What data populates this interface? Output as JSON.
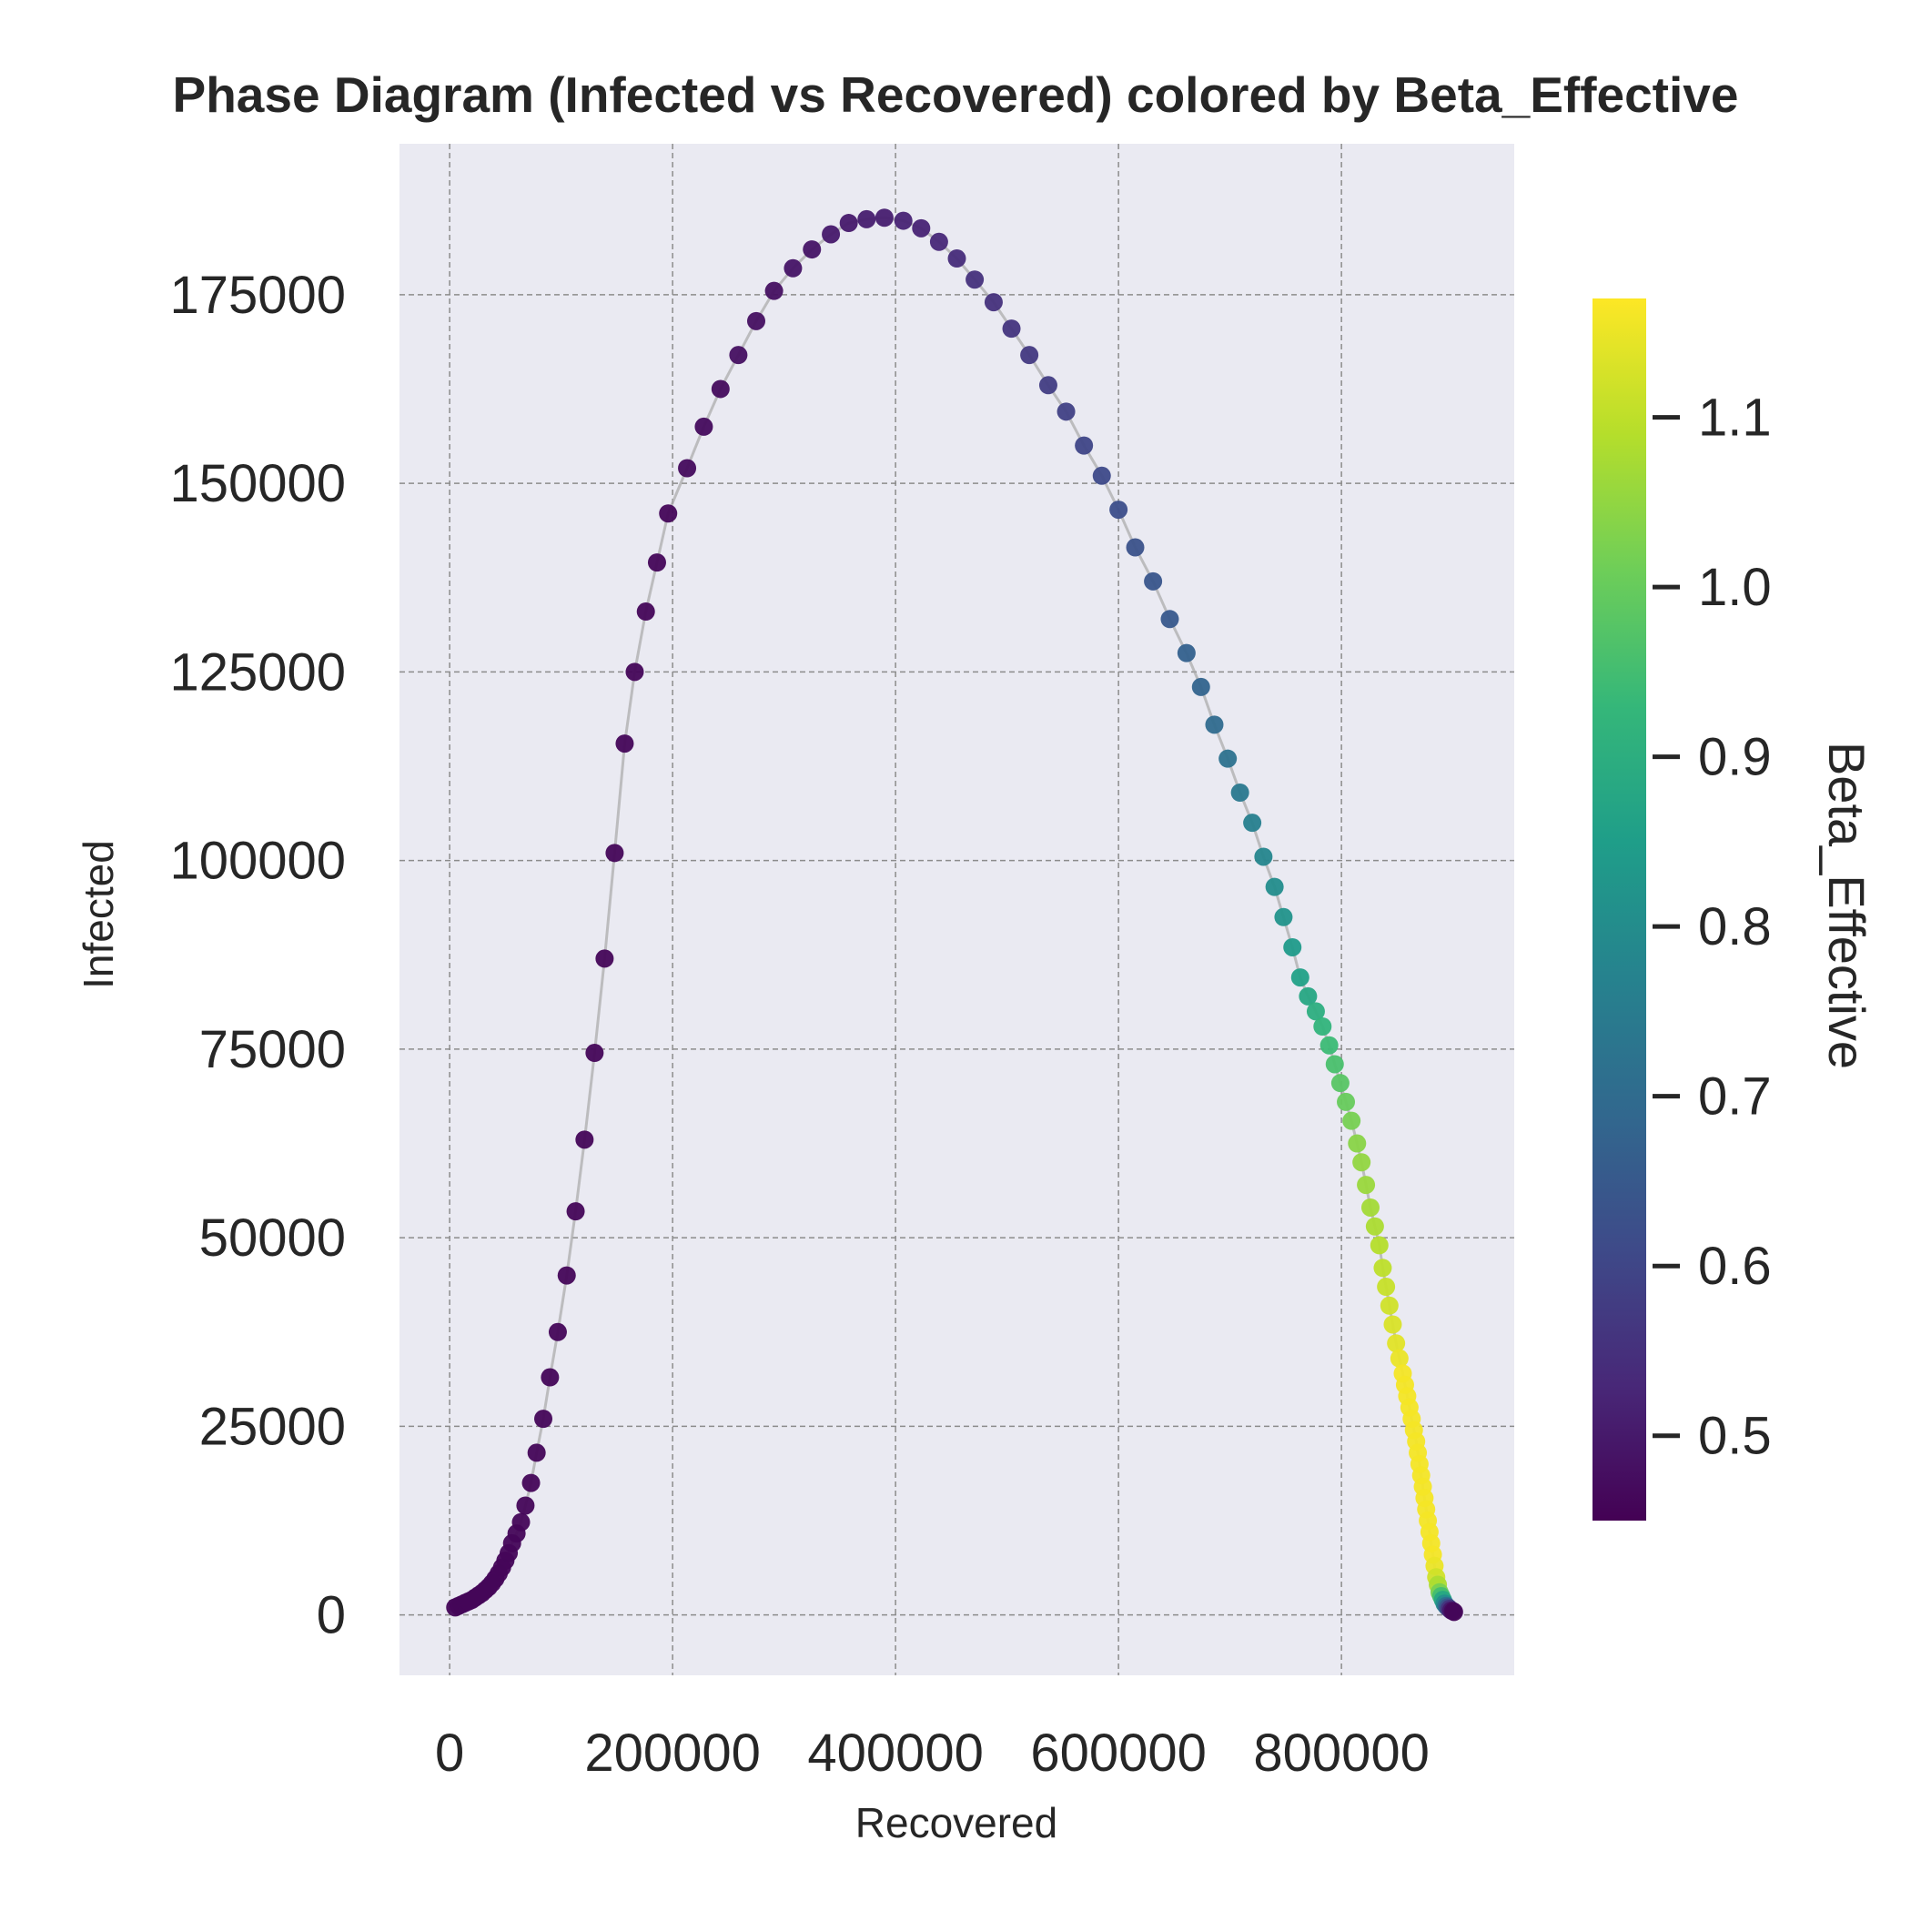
{
  "chart_data": {
    "type": "scatter",
    "title": "Phase Diagram (Infected vs Recovered) colored by Beta_Effective",
    "xlabel": "Recovered",
    "ylabel": "Infected",
    "xlim": [
      -45000,
      955000
    ],
    "ylim": [
      -8000,
      195000
    ],
    "x_ticks": [
      0,
      200000,
      400000,
      600000,
      800000
    ],
    "y_ticks": [
      0,
      25000,
      50000,
      75000,
      100000,
      125000,
      150000,
      175000
    ],
    "grid": true,
    "connecting_line": true,
    "colorbar": {
      "label": "Beta_Effective",
      "colormap": "viridis",
      "range": [
        0.45,
        1.17
      ],
      "ticks": [
        0.5,
        0.6,
        0.7,
        0.8,
        0.9,
        1.0,
        1.1
      ]
    },
    "series": [
      {
        "x": [
          5000,
          8000,
          11000,
          14000,
          17000,
          20000,
          23000,
          26000,
          29000,
          32000,
          35000,
          38000,
          41000,
          44000,
          47000,
          50000,
          53000,
          56000,
          60000,
          64000,
          68000,
          73000,
          78000,
          84000,
          90000,
          97000,
          105000,
          113000,
          121000,
          130000,
          139000,
          148000,
          157000,
          166000,
          176000,
          186000,
          196000,
          213000,
          228000,
          243000,
          259000,
          275000,
          291000,
          308000,
          325000,
          342000,
          358000,
          374000,
          390000,
          407000,
          423000,
          439000,
          455000,
          471000,
          488000,
          504000,
          520000,
          537000,
          553000,
          569000,
          585000,
          600000,
          615000,
          631000,
          646000,
          661000,
          674000,
          686000,
          698000,
          709000,
          720000,
          730000,
          740000,
          748000,
          756000,
          763000,
          770000,
          777000,
          783000,
          789000,
          794000,
          799000,
          804000,
          809000,
          814000,
          818000,
          822000,
          826000,
          830000,
          834000,
          837000,
          840000,
          843000,
          846000,
          849000,
          852000,
          855000,
          857000,
          859000,
          861000,
          863000,
          865000,
          867000,
          868500,
          870000,
          871500,
          873000,
          874500,
          876000,
          877500,
          879000,
          880500,
          882000,
          883500,
          885000,
          886500,
          888000,
          889500,
          891000,
          892500,
          894000,
          895500,
          897000,
          898500,
          900000,
          901000
        ],
        "y": [
          1000,
          1200,
          1400,
          1600,
          1800,
          2000,
          2300,
          2600,
          2900,
          3300,
          3700,
          4200,
          4800,
          5500,
          6300,
          7200,
          8200,
          9500,
          10800,
          12300,
          14500,
          17500,
          21500,
          26000,
          31500,
          37500,
          45000,
          53500,
          63000,
          74500,
          87000,
          101000,
          115500,
          125000,
          133000,
          139500,
          146000,
          152000,
          157500,
          162500,
          167000,
          171500,
          175500,
          178500,
          181000,
          183000,
          184500,
          185000,
          185200,
          184800,
          183800,
          182000,
          179800,
          177000,
          174000,
          170500,
          167000,
          163000,
          159500,
          155000,
          151000,
          146500,
          141500,
          137000,
          132000,
          127500,
          123000,
          118000,
          113500,
          109000,
          105000,
          100500,
          96500,
          92500,
          88500,
          84500,
          82000,
          80000,
          78000,
          75500,
          73000,
          70500,
          68000,
          65500,
          62500,
          60000,
          57000,
          54000,
          51500,
          49000,
          46000,
          43500,
          41000,
          38500,
          36000,
          34000,
          32000,
          30500,
          29000,
          27500,
          26000,
          24500,
          23000,
          21500,
          20000,
          18500,
          17000,
          15500,
          14000,
          12500,
          11000,
          9500,
          8000,
          6500,
          5000,
          4000,
          3000,
          2500,
          2000,
          1500,
          1200,
          1000,
          800,
          600,
          500,
          400
        ],
        "color_values": [
          0.46,
          0.46,
          0.46,
          0.46,
          0.46,
          0.46,
          0.46,
          0.46,
          0.46,
          0.46,
          0.46,
          0.46,
          0.46,
          0.46,
          0.46,
          0.46,
          0.46,
          0.46,
          0.46,
          0.46,
          0.46,
          0.46,
          0.46,
          0.46,
          0.46,
          0.46,
          0.46,
          0.46,
          0.46,
          0.46,
          0.46,
          0.46,
          0.46,
          0.46,
          0.46,
          0.46,
          0.46,
          0.47,
          0.47,
          0.47,
          0.48,
          0.48,
          0.48,
          0.49,
          0.49,
          0.5,
          0.5,
          0.51,
          0.51,
          0.52,
          0.52,
          0.53,
          0.54,
          0.55,
          0.55,
          0.56,
          0.57,
          0.58,
          0.59,
          0.6,
          0.61,
          0.62,
          0.63,
          0.64,
          0.65,
          0.67,
          0.68,
          0.7,
          0.72,
          0.74,
          0.76,
          0.78,
          0.8,
          0.82,
          0.84,
          0.86,
          0.88,
          0.9,
          0.92,
          0.94,
          0.96,
          0.98,
          1.0,
          1.02,
          1.04,
          1.05,
          1.06,
          1.07,
          1.08,
          1.09,
          1.1,
          1.11,
          1.12,
          1.13,
          1.14,
          1.15,
          1.16,
          1.16,
          1.16,
          1.16,
          1.16,
          1.16,
          1.16,
          1.16,
          1.16,
          1.16,
          1.16,
          1.16,
          1.16,
          1.16,
          1.16,
          1.16,
          1.16,
          1.15,
          1.12,
          1.08,
          1.02,
          0.95,
          0.88,
          0.8,
          0.72,
          0.64,
          0.56,
          0.5,
          0.47,
          0.46
        ]
      }
    ]
  }
}
